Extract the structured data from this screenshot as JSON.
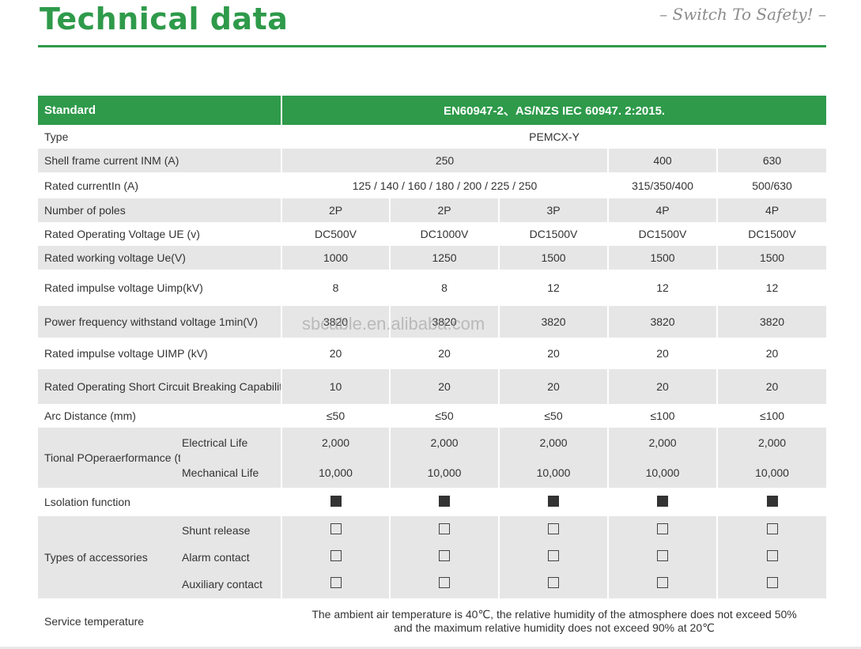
{
  "header": {
    "title": "Technical data",
    "slogan": "– Switch To Safety! –",
    "accent_color": "#2e9a4a"
  },
  "table": {
    "standard_label": "Standard",
    "standard_value": "EN60947-2、AS/NZS IEC 60947. 2:2015.",
    "type_label": "Type",
    "type_value": "PEMCX-Y",
    "shell_label": "Shell frame current INM  (A)",
    "shell_values": [
      "250",
      "400",
      "630"
    ],
    "rated_current_label": "Rated currentIn  (A)",
    "rated_current_values": [
      "125 / 140 / 160 / 180 / 200 / 225 / 250",
      "315/350/400",
      "500/630"
    ],
    "poles_label": "Number of poles",
    "poles": [
      "2P",
      "2P",
      "3P",
      "4P",
      "4P"
    ],
    "op_voltage_label": "Rated Operating Voltage UE (v)",
    "op_voltage": [
      "DC500V",
      "DC1000V",
      "DC1500V",
      "DC1500V",
      "DC1500V"
    ],
    "work_voltage_label": "Rated working voltage Ue(V)",
    "work_voltage": [
      "1000",
      "1250",
      "1500",
      "1500",
      "1500"
    ],
    "impulse_label": "Rated impulse voltage Uimp(kV)",
    "impulse": [
      "8",
      "8",
      "12",
      "12",
      "12"
    ],
    "power_freq_label": "Power frequency withstand voltage 1min(V)",
    "power_freq": [
      "3820",
      "3820",
      "3820",
      "3820",
      "3820"
    ],
    "impulse2_label": "Rated impulse voltage UIMP (kV)",
    "impulse2": [
      "20",
      "20",
      "20",
      "20",
      "20"
    ],
    "breaking_label": "Rated Operating Short Circuit Breaking Capability ICS (Ka)",
    "breaking": [
      "10",
      "20",
      "20",
      "20",
      "20"
    ],
    "arc_label": "Arc Distance (mm)",
    "arc": [
      "≤50",
      "≤50",
      "≤50",
      "≤100",
      "≤100"
    ],
    "performance_label": "Tional POperaerformance (times)",
    "electrical_label": "Electrical Life",
    "electrical": [
      "2,000",
      "2,000",
      "2,000",
      "2,000",
      "2,000"
    ],
    "mechanical_label": "Mechanical Life",
    "mechanical": [
      "10,000",
      "10,000",
      "10,000",
      "10,000",
      "10,000"
    ],
    "isolation_label": "Lsolation function",
    "accessories_label": "Types of accessories",
    "shunt_label": "Shunt release",
    "alarm_label": "Alarm contact",
    "auxiliary_label": "Auxiliary contact",
    "service_label": "Service temperature",
    "service_line1": "The ambient air temperature is 40℃, the relative humidity of the atmosphere does not exceed 50%",
    "service_line2": "and the maximum relative humidity does not exceed 90% at 20℃"
  },
  "watermark": "sbcable.en.alibaba.com"
}
